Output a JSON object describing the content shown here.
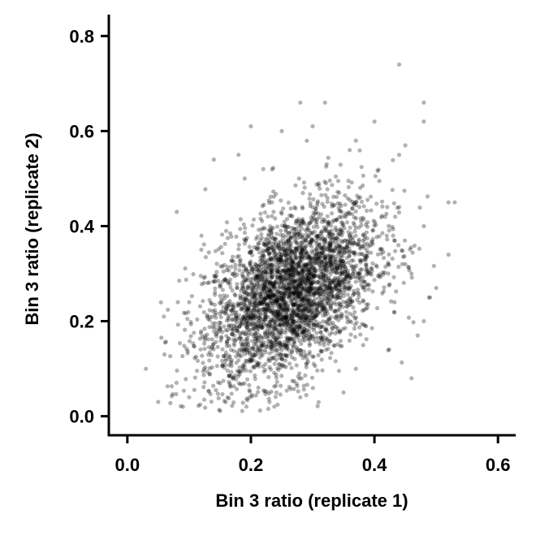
{
  "chart_data": {
    "type": "scatter",
    "title": "",
    "xlabel": "Bin 3 ratio (replicate 1)",
    "ylabel": "Bin 3 ratio (replicate 2)",
    "xlim": [
      -0.03,
      0.63
    ],
    "ylim": [
      -0.04,
      0.845
    ],
    "xticks": [
      0.0,
      0.2,
      0.4,
      0.6
    ],
    "xtick_labels": [
      "0.0",
      "0.2",
      "0.4",
      "0.6"
    ],
    "yticks": [
      0.0,
      0.2,
      0.4,
      0.6,
      0.8
    ],
    "ytick_labels": [
      "0.0",
      "0.2",
      "0.4",
      "0.6",
      "0.8"
    ],
    "grid": false,
    "legend": "none",
    "point_color": "#000000",
    "point_opacity": 0.3,
    "points": [
      [
        0.44,
        0.74
      ],
      [
        0.48,
        0.66
      ],
      [
        0.28,
        0.66
      ],
      [
        0.32,
        0.66
      ],
      [
        0.48,
        0.62
      ],
      [
        0.4,
        0.62
      ],
      [
        0.3,
        0.61
      ],
      [
        0.25,
        0.6
      ],
      [
        0.2,
        0.61
      ],
      [
        0.37,
        0.58
      ],
      [
        0.45,
        0.57
      ],
      [
        0.44,
        0.55
      ],
      [
        0.18,
        0.55
      ],
      [
        0.14,
        0.54
      ],
      [
        0.36,
        0.56
      ],
      [
        0.08,
        0.43
      ],
      [
        0.52,
        0.45
      ],
      [
        0.53,
        0.45
      ],
      [
        0.52,
        0.34
      ],
      [
        0.5,
        0.27
      ],
      [
        0.49,
        0.25
      ],
      [
        0.48,
        0.2
      ],
      [
        0.47,
        0.17
      ],
      [
        0.46,
        0.08
      ],
      [
        0.03,
        0.1
      ],
      [
        0.05,
        0.03
      ],
      [
        0.06,
        0.13
      ],
      [
        0.09,
        0.02
      ],
      [
        0.1,
        0.04
      ],
      [
        0.35,
        0.05
      ],
      [
        0.28,
        0.04
      ],
      [
        0.23,
        0.03
      ],
      [
        0.37,
        0.1
      ],
      [
        0.45,
        0.32
      ],
      [
        0.46,
        0.3
      ],
      [
        0.12,
        0.38
      ],
      [
        0.13,
        0.28
      ],
      [
        0.1,
        0.24
      ],
      [
        0.19,
        0.5
      ],
      [
        0.22,
        0.52
      ],
      [
        0.36,
        0.2
      ],
      [
        0.48,
        0.4
      ],
      [
        0.44,
        0.44
      ],
      [
        0.42,
        0.38
      ],
      [
        0.16,
        0.39
      ],
      [
        0.3,
        0.44
      ],
      [
        0.34,
        0.31
      ]
    ],
    "cloud": {
      "n": 3400,
      "center": [
        0.265,
        0.26
      ],
      "sd": [
        0.07,
        0.095
      ],
      "correlation": 0.45
    }
  }
}
